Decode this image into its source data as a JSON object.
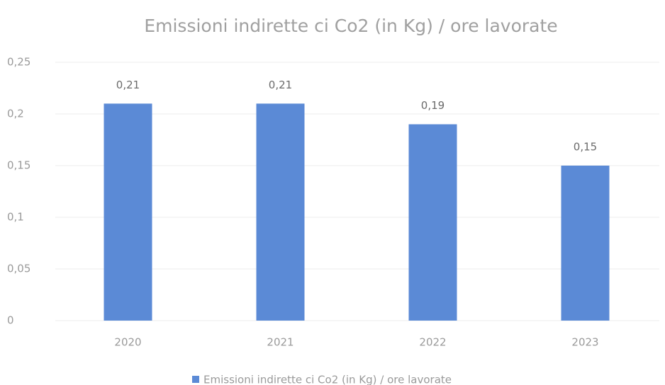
{
  "chart_data": {
    "type": "bar",
    "title": "Emissioni indirette ci Co2 (in Kg) / ore lavorate",
    "categories": [
      "2020",
      "2021",
      "2022",
      "2023"
    ],
    "series": [
      {
        "name": "Emissioni indirette ci Co2 (in Kg) / ore lavorate",
        "color": "#5b8ad6",
        "values": [
          0.21,
          0.21,
          0.19,
          0.15
        ],
        "value_labels": [
          "0,21",
          "0,21",
          "0,19",
          "0,15"
        ]
      }
    ],
    "ylim": [
      0,
      0.25
    ],
    "yticks": [
      0,
      {
        "value": 0.05,
        "label": "0,05"
      },
      {
        "value": 0.1,
        "label": "0,1"
      },
      {
        "value": 0.15,
        "label": "0,15"
      },
      {
        "value": 0.2,
        "label": "0,2"
      },
      {
        "value": 0.25,
        "label": "0,25"
      }
    ],
    "grid": true,
    "legend": "bottom"
  }
}
